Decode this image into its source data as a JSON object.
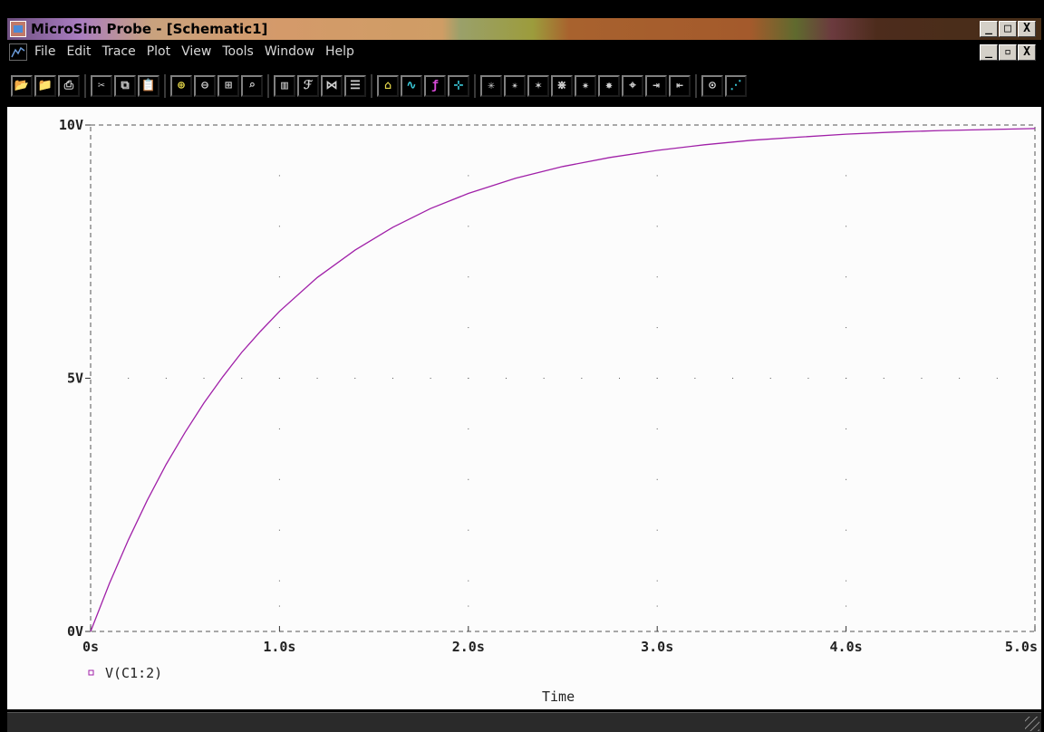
{
  "window": {
    "title": "MicroSim Probe - [Schematic1]",
    "controls": [
      "_",
      "□",
      "X"
    ],
    "doc_controls": [
      "_",
      "▫",
      "X"
    ]
  },
  "menu": {
    "items": [
      {
        "id": "file",
        "label": "File"
      },
      {
        "id": "edit",
        "label": "Edit"
      },
      {
        "id": "trace",
        "label": "Trace"
      },
      {
        "id": "plot",
        "label": "Plot"
      },
      {
        "id": "view",
        "label": "View"
      },
      {
        "id": "tools",
        "label": "Tools"
      },
      {
        "id": "window",
        "label": "Window"
      },
      {
        "id": "help",
        "label": "Help"
      }
    ]
  },
  "toolbar": {
    "icons": [
      "open-file-icon",
      "append-file-icon",
      "print-icon",
      "cut-icon",
      "copy-icon",
      "paste-icon",
      "zoom-in-icon",
      "zoom-out-icon",
      "zoom-area-icon",
      "zoom-fit-icon",
      "log-x-icon",
      "fourier-icon",
      "performance-analysis-icon",
      "add-y-axis-icon",
      "add-plot-icon",
      "add-trace-icon",
      "eval-goal-function-icon",
      "cursor-toggle-icon",
      "cursor-peak-icon",
      "cursor-trough-icon",
      "cursor-slope-icon",
      "cursor-min-icon",
      "cursor-max-icon",
      "cursor-point-icon",
      "cursor-search-icon",
      "cursor-next-transition-icon",
      "cursor-prev-transition-icon",
      "mark-label-icon",
      "mark-data-points-icon"
    ]
  },
  "chart_data": {
    "type": "line",
    "title": "",
    "xlabel": "Time",
    "ylabel": "",
    "xlim": [
      0,
      5.0
    ],
    "ylim": [
      0,
      10
    ],
    "x_ticks": [
      "0s",
      "1.0s",
      "2.0s",
      "3.0s",
      "4.0s",
      "5.0s"
    ],
    "y_ticks": [
      "0V",
      "5V",
      "10V"
    ],
    "grid": "dotted",
    "legend_position": "bottom-left",
    "series": [
      {
        "name": "V(C1:2)",
        "color": "#a020a8",
        "x": [
          0,
          0.1,
          0.2,
          0.3,
          0.4,
          0.5,
          0.6,
          0.7,
          0.8,
          0.9,
          1.0,
          1.2,
          1.4,
          1.6,
          1.8,
          2.0,
          2.25,
          2.5,
          2.75,
          3.0,
          3.25,
          3.5,
          3.75,
          4.0,
          4.25,
          4.5,
          4.75,
          5.0
        ],
        "y": [
          0,
          0.95,
          1.81,
          2.59,
          3.3,
          3.93,
          4.51,
          5.03,
          5.51,
          5.93,
          6.32,
          6.99,
          7.53,
          7.98,
          8.35,
          8.65,
          8.95,
          9.18,
          9.36,
          9.5,
          9.61,
          9.7,
          9.76,
          9.82,
          9.86,
          9.89,
          9.91,
          9.93
        ]
      }
    ]
  }
}
